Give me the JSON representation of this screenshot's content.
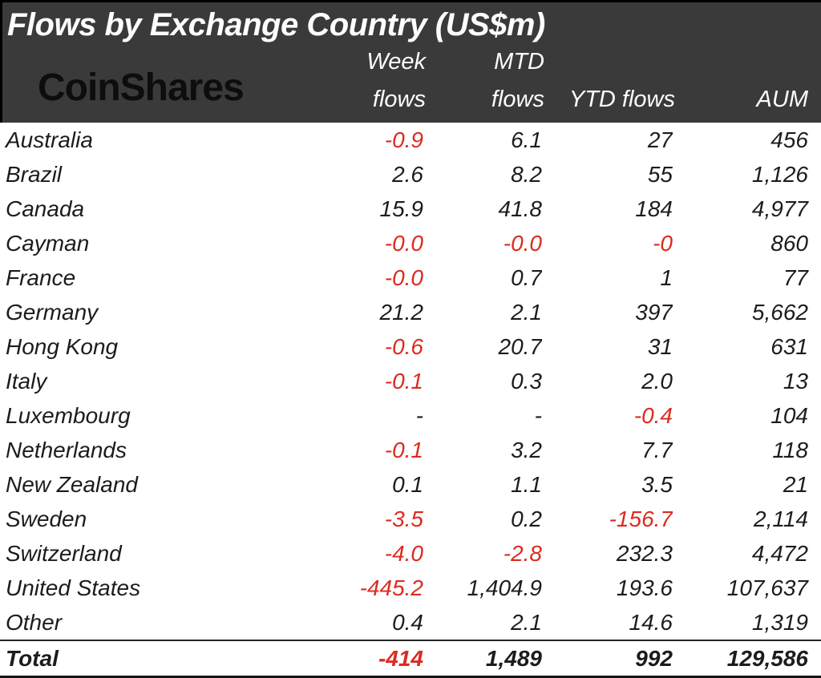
{
  "header": {
    "title": "Flows by Exchange Country (US$m)",
    "logo": "CoinShares",
    "columns": [
      {
        "line1": "Week",
        "line2": "flows"
      },
      {
        "line1": "",
        "line2": "MTD"
      },
      {
        "line1": "",
        "line2": "flows"
      }
    ],
    "col_week_line1": "Week",
    "col_week_line2": "flows",
    "col_mtd_line1": "MTD",
    "col_mtd_line2": "flows",
    "col_ytd": "YTD flows",
    "col_aum": "AUM"
  },
  "colors": {
    "header_bg": "#3a3a3a",
    "header_text": "#fdfdfd",
    "body_text": "#1c1c1c",
    "negative": "#dc2b20",
    "logo_text": "#0d0d0d"
  },
  "table": {
    "rows": [
      {
        "country": "Australia",
        "week": "-0.9",
        "mtd": "6.1",
        "ytd": "27",
        "aum": "456"
      },
      {
        "country": "Brazil",
        "week": "2.6",
        "mtd": "8.2",
        "ytd": "55",
        "aum": "1,126"
      },
      {
        "country": "Canada",
        "week": "15.9",
        "mtd": "41.8",
        "ytd": "184",
        "aum": "4,977"
      },
      {
        "country": "Cayman",
        "week": "-0.0",
        "mtd": "-0.0",
        "ytd": "-0",
        "aum": "860"
      },
      {
        "country": "France",
        "week": "-0.0",
        "mtd": "0.7",
        "ytd": "1",
        "aum": "77"
      },
      {
        "country": "Germany",
        "week": "21.2",
        "mtd": "2.1",
        "ytd": "397",
        "aum": "5,662"
      },
      {
        "country": "Hong Kong",
        "week": "-0.6",
        "mtd": "20.7",
        "ytd": "31",
        "aum": "631"
      },
      {
        "country": "Italy",
        "week": "-0.1",
        "mtd": "0.3",
        "ytd": "2.0",
        "aum": "13"
      },
      {
        "country": "Luxembourg",
        "week": "-",
        "mtd": "-",
        "ytd": "-0.4",
        "aum": "104"
      },
      {
        "country": "Netherlands",
        "week": "-0.1",
        "mtd": "3.2",
        "ytd": "7.7",
        "aum": "118"
      },
      {
        "country": "New Zealand",
        "week": "0.1",
        "mtd": "1.1",
        "ytd": "3.5",
        "aum": "21"
      },
      {
        "country": "Sweden",
        "week": "-3.5",
        "mtd": "0.2",
        "ytd": "-156.7",
        "aum": "2,114"
      },
      {
        "country": "Switzerland",
        "week": "-4.0",
        "mtd": "-2.8",
        "ytd": "232.3",
        "aum": "4,472"
      },
      {
        "country": "United States",
        "week": "-445.2",
        "mtd": "1,404.9",
        "ytd": "193.6",
        "aum": "107,637"
      },
      {
        "country": "Other",
        "week": "0.4",
        "mtd": "2.1",
        "ytd": "14.6",
        "aum": "1,319"
      }
    ],
    "total": {
      "label": "Total",
      "week": "-414",
      "mtd": "1,489",
      "ytd": "992",
      "aum": "129,586"
    }
  },
  "chart_data": {
    "type": "table",
    "title": "Flows by Exchange Country (US$m)",
    "columns": [
      "Country",
      "Week flows",
      "MTD flows",
      "YTD flows",
      "AUM"
    ],
    "rows": [
      [
        "Australia",
        -0.9,
        6.1,
        27,
        456
      ],
      [
        "Brazil",
        2.6,
        8.2,
        55,
        1126
      ],
      [
        "Canada",
        15.9,
        41.8,
        184,
        4977
      ],
      [
        "Cayman",
        -0.0,
        -0.0,
        -0.0,
        860
      ],
      [
        "France",
        -0.0,
        0.7,
        1,
        77
      ],
      [
        "Germany",
        21.2,
        2.1,
        397,
        5662
      ],
      [
        "Hong Kong",
        -0.6,
        20.7,
        31,
        631
      ],
      [
        "Italy",
        -0.1,
        0.3,
        2.0,
        13
      ],
      [
        "Luxembourg",
        null,
        null,
        -0.4,
        104
      ],
      [
        "Netherlands",
        -0.1,
        3.2,
        7.7,
        118
      ],
      [
        "New Zealand",
        0.1,
        1.1,
        3.5,
        21
      ],
      [
        "Sweden",
        -3.5,
        0.2,
        -156.7,
        2114
      ],
      [
        "Switzerland",
        -4.0,
        -2.8,
        232.3,
        4472
      ],
      [
        "United States",
        -445.2,
        1404.9,
        193.6,
        107637
      ],
      [
        "Other",
        0.4,
        2.1,
        14.6,
        1319
      ]
    ],
    "total_row": [
      "Total",
      -414,
      1489,
      992,
      129586
    ],
    "negative_color": "#dc2b20"
  }
}
